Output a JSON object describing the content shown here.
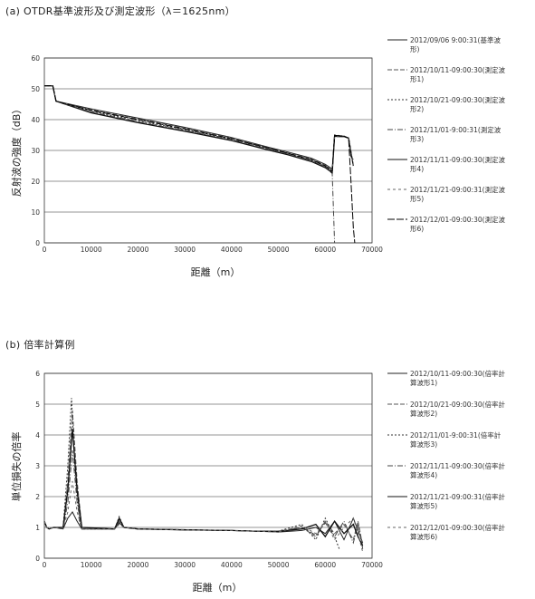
{
  "chart_data": [
    {
      "type": "line",
      "title": "(a) OTDR基準波形及び測定波形（λ＝1625nm）",
      "xlabel": "距離（m）",
      "ylabel": "反射波の強度（dB）",
      "xlim": [
        0,
        70000
      ],
      "ylim": [
        0,
        60
      ],
      "x_ticks": [
        0,
        10000,
        20000,
        30000,
        40000,
        50000,
        60000,
        70000
      ],
      "y_ticks": [
        0,
        10,
        20,
        30,
        40,
        50,
        60
      ],
      "grid": true,
      "legend": "right",
      "series": [
        {
          "name": "2012/09/06 9:00:31(基準波形)",
          "x": [
            0,
            800,
            1800,
            2500,
            10000,
            20000,
            30000,
            40000,
            48000,
            52000,
            57000,
            60000,
            61500,
            62000,
            62500,
            64000,
            65000,
            65500,
            66000
          ],
          "y": [
            51,
            51,
            51,
            46,
            43.5,
            40.5,
            37.5,
            34.2,
            31,
            29.5,
            27.5,
            25.5,
            24,
            35,
            34.5,
            34.5,
            34,
            28,
            27
          ]
        },
        {
          "name": "2012/10/11-09:00:30(測定波形1)",
          "x": [
            0,
            1800,
            2500,
            10000,
            20000,
            30000,
            40000,
            48000,
            52000,
            57000,
            60000,
            61500,
            62000,
            64000,
            65000,
            66000
          ],
          "y": [
            51,
            51,
            46,
            43.2,
            40.2,
            37.2,
            34,
            30.8,
            29.2,
            27.2,
            25.2,
            23.5,
            35,
            34.7,
            34,
            25
          ]
        },
        {
          "name": "2012/10/21-09:00:30(測定波形2)",
          "x": [
            0,
            1800,
            2500,
            10000,
            20000,
            30000,
            40000,
            48000,
            52000,
            57000,
            60000,
            61500,
            62000,
            64000,
            65000,
            66000
          ],
          "y": [
            51,
            51,
            46,
            42.8,
            39.6,
            36.8,
            33.6,
            30.5,
            29,
            26.8,
            24.8,
            23,
            34.8,
            34.6,
            34,
            25
          ]
        },
        {
          "name": "2012/11/01-9:00:31(測定波形3)",
          "x": [
            0,
            1800,
            2500,
            10000,
            20000,
            30000,
            40000,
            48000,
            52000,
            57000,
            60000,
            61500,
            62000
          ],
          "y": [
            51,
            51,
            46,
            42.5,
            39.2,
            36.5,
            33.4,
            30.3,
            28.8,
            26.6,
            24.6,
            22.5,
            0
          ]
        },
        {
          "name": "2012/11/11-09:00:30(測定波形4)",
          "x": [
            0,
            1800,
            2500,
            10000,
            20000,
            30000,
            40000,
            48000,
            52000,
            57000,
            60000,
            61500,
            62000,
            64000,
            65000,
            66000
          ],
          "y": [
            51,
            51,
            46,
            42.2,
            39,
            36.2,
            33.2,
            30.1,
            28.6,
            26.4,
            24.4,
            22.8,
            34.6,
            34.5,
            34,
            25
          ]
        },
        {
          "name": "2012/11/21-09:00:31(測定波形5)",
          "x": [
            0,
            1800,
            2500,
            10000,
            20000,
            30000,
            40000,
            48000,
            52000,
            57000,
            60000,
            61500,
            62000,
            64000,
            65000,
            66000
          ],
          "y": [
            51,
            51,
            46,
            42.6,
            39.4,
            36.6,
            33.5,
            30.4,
            28.9,
            26.7,
            24.7,
            23.2,
            34.7,
            34.5,
            34,
            25
          ]
        },
        {
          "name": "2012/12/01-09:00:30(測定波形6)",
          "x": [
            0,
            1800,
            2500,
            10000,
            20000,
            30000,
            40000,
            48000,
            52000,
            57000,
            60000,
            61500,
            62000,
            64000,
            65000,
            65500,
            66000,
            66300
          ],
          "y": [
            51,
            51,
            46,
            43,
            40,
            37,
            33.8,
            30.7,
            29.1,
            27,
            25,
            23.3,
            34.9,
            34.6,
            34,
            20,
            5,
            0
          ]
        }
      ]
    },
    {
      "type": "line",
      "title": "(b) 倍率計算例",
      "xlabel": "距離（m）",
      "ylabel": "単位損失の倍率",
      "xlim": [
        0,
        70000
      ],
      "ylim": [
        0,
        6
      ],
      "x_ticks": [
        0,
        10000,
        20000,
        30000,
        40000,
        50000,
        60000,
        70000
      ],
      "y_ticks": [
        0,
        1,
        2,
        3,
        4,
        5,
        6
      ],
      "grid": true,
      "legend": "right",
      "series": [
        {
          "name": "2012/10/11-09:00:30(倍率計算波形1)",
          "x": [
            0,
            500,
            1000,
            2000,
            4000,
            5000,
            6000,
            7000,
            8000,
            15000,
            16000,
            17000,
            20000,
            30000,
            40000,
            45000,
            50000,
            55000,
            58000,
            60000,
            62000,
            64000,
            66000,
            67000,
            68000
          ],
          "y": [
            1.2,
            1.0,
            0.95,
            1.0,
            0.95,
            1.3,
            1.5,
            1.2,
            0.95,
            0.95,
            1.15,
            1.0,
            0.95,
            0.92,
            0.9,
            0.88,
            0.85,
            0.9,
            1.0,
            0.8,
            1.2,
            0.6,
            1.3,
            0.9,
            0.5
          ]
        },
        {
          "name": "2012/10/21-09:00:30(倍率計算波形2)",
          "x": [
            0,
            500,
            1000,
            2000,
            4000,
            5000,
            6000,
            7000,
            8000,
            15000,
            16000,
            17000,
            20000,
            30000,
            40000,
            45000,
            50000,
            55000,
            58000,
            60000,
            62000,
            64000,
            66000,
            67000,
            68000
          ],
          "y": [
            1.2,
            1.0,
            0.95,
            1.0,
            1.0,
            2.5,
            4.8,
            2.5,
            1.0,
            0.95,
            1.25,
            1.0,
            0.95,
            0.93,
            0.9,
            0.88,
            0.88,
            1.0,
            0.7,
            1.2,
            0.8,
            1.1,
            0.6,
            1.2,
            0.4
          ]
        },
        {
          "name": "2012/11/01-9:00:31(倍率計算波形3)",
          "x": [
            0,
            500,
            1000,
            2000,
            4000,
            5000,
            5800,
            6500,
            7500,
            8000,
            15000,
            16000,
            17000,
            20000,
            30000,
            40000,
            45000,
            50000,
            55000,
            58000,
            60000,
            62000,
            63000
          ],
          "y": [
            1.2,
            1.0,
            0.95,
            1.0,
            1.0,
            3.0,
            5.2,
            3.0,
            1.2,
            0.95,
            0.95,
            1.35,
            1.0,
            0.95,
            0.92,
            0.9,
            0.88,
            0.88,
            1.1,
            0.6,
            1.3,
            0.7,
            0.3
          ]
        },
        {
          "name": "2012/11/11-09:00:30(倍率計算波形4)",
          "x": [
            0,
            500,
            1000,
            2000,
            4000,
            5000,
            6000,
            7000,
            8000,
            15000,
            16000,
            17000,
            20000,
            30000,
            40000,
            45000,
            50000,
            55000,
            58000,
            60000,
            62000,
            64000,
            66000,
            67000,
            68000
          ],
          "y": [
            1.2,
            1.0,
            0.95,
            1.0,
            0.98,
            1.8,
            3.5,
            1.8,
            0.95,
            0.95,
            1.2,
            1.0,
            0.95,
            0.92,
            0.9,
            0.88,
            0.86,
            1.0,
            0.75,
            1.15,
            0.7,
            1.2,
            0.5,
            1.1,
            0.3
          ]
        },
        {
          "name": "2012/11/21-09:00:31(倍率計算波形5)",
          "x": [
            0,
            500,
            1000,
            2000,
            4000,
            5000,
            6000,
            7000,
            8000,
            15000,
            16000,
            17000,
            20000,
            30000,
            40000,
            45000,
            50000,
            55000,
            58000,
            60000,
            62000,
            64000,
            66000,
            67000,
            68000
          ],
          "y": [
            1.2,
            1.0,
            0.95,
            1.0,
            1.0,
            2.2,
            4.2,
            2.2,
            1.0,
            0.95,
            1.3,
            1.0,
            0.95,
            0.92,
            0.9,
            0.88,
            0.87,
            0.95,
            1.1,
            0.7,
            1.2,
            0.8,
            1.1,
            0.7,
            0.4
          ]
        },
        {
          "name": "2012/12/01-09:00:30(倍率計算波形6)",
          "x": [
            0,
            500,
            1000,
            2000,
            4000,
            5000,
            6000,
            7000,
            8000,
            15000,
            16000,
            17000,
            20000,
            30000,
            40000,
            45000,
            50000,
            55000,
            58000,
            60000,
            62000,
            64000,
            66000,
            67000,
            68000
          ],
          "y": [
            1.2,
            1.0,
            0.95,
            1.0,
            0.97,
            1.5,
            2.5,
            1.5,
            0.95,
            0.95,
            1.1,
            1.0,
            0.95,
            0.92,
            0.9,
            0.88,
            0.85,
            1.05,
            0.8,
            1.2,
            0.6,
            1.0,
            1.3,
            0.8,
            0.2
          ]
        }
      ]
    }
  ],
  "colors": {
    "series": [
      "#222222",
      "#555555",
      "#333333",
      "#444444",
      "#111111",
      "#666666",
      "#000000"
    ],
    "grid": "#2a2a2a",
    "axis": "#333333"
  }
}
